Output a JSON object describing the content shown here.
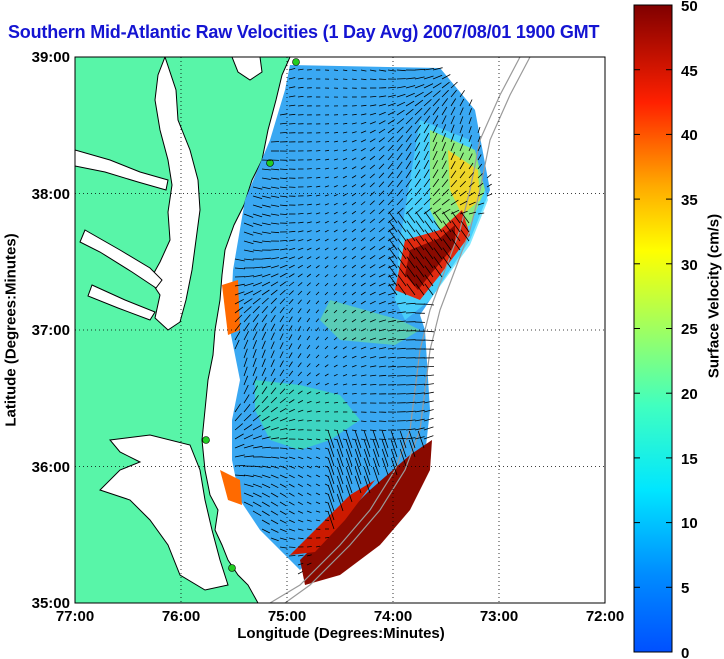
{
  "title": "Southern Mid-Atlantic Raw Velocities (1 Day Avg) 2007/08/01 1900 GMT",
  "axes": {
    "xlabel": "Longitude (Degrees:Minutes)",
    "ylabel": "Latitude (Degrees:Minutes)",
    "xticks": [
      "77:00",
      "76:00",
      "75:00",
      "74:00",
      "73:00",
      "72:00"
    ],
    "yticks": [
      "39:00",
      "38:00",
      "37:00",
      "36:00",
      "35:00"
    ],
    "grid": "dotted"
  },
  "colorbar": {
    "label": "Surface Velocity (cm/s)",
    "ticks": [
      "50",
      "45",
      "40",
      "35",
      "30",
      "25",
      "20",
      "15",
      "10",
      "5",
      "0"
    ],
    "range": [
      0,
      50
    ],
    "colormap": "jet"
  },
  "colors": {
    "land": "#58f5a8",
    "title": "#1414d2",
    "coast": "#000000",
    "sites": "#22cc22",
    "bathymetry": "#9a9a9a"
  }
}
